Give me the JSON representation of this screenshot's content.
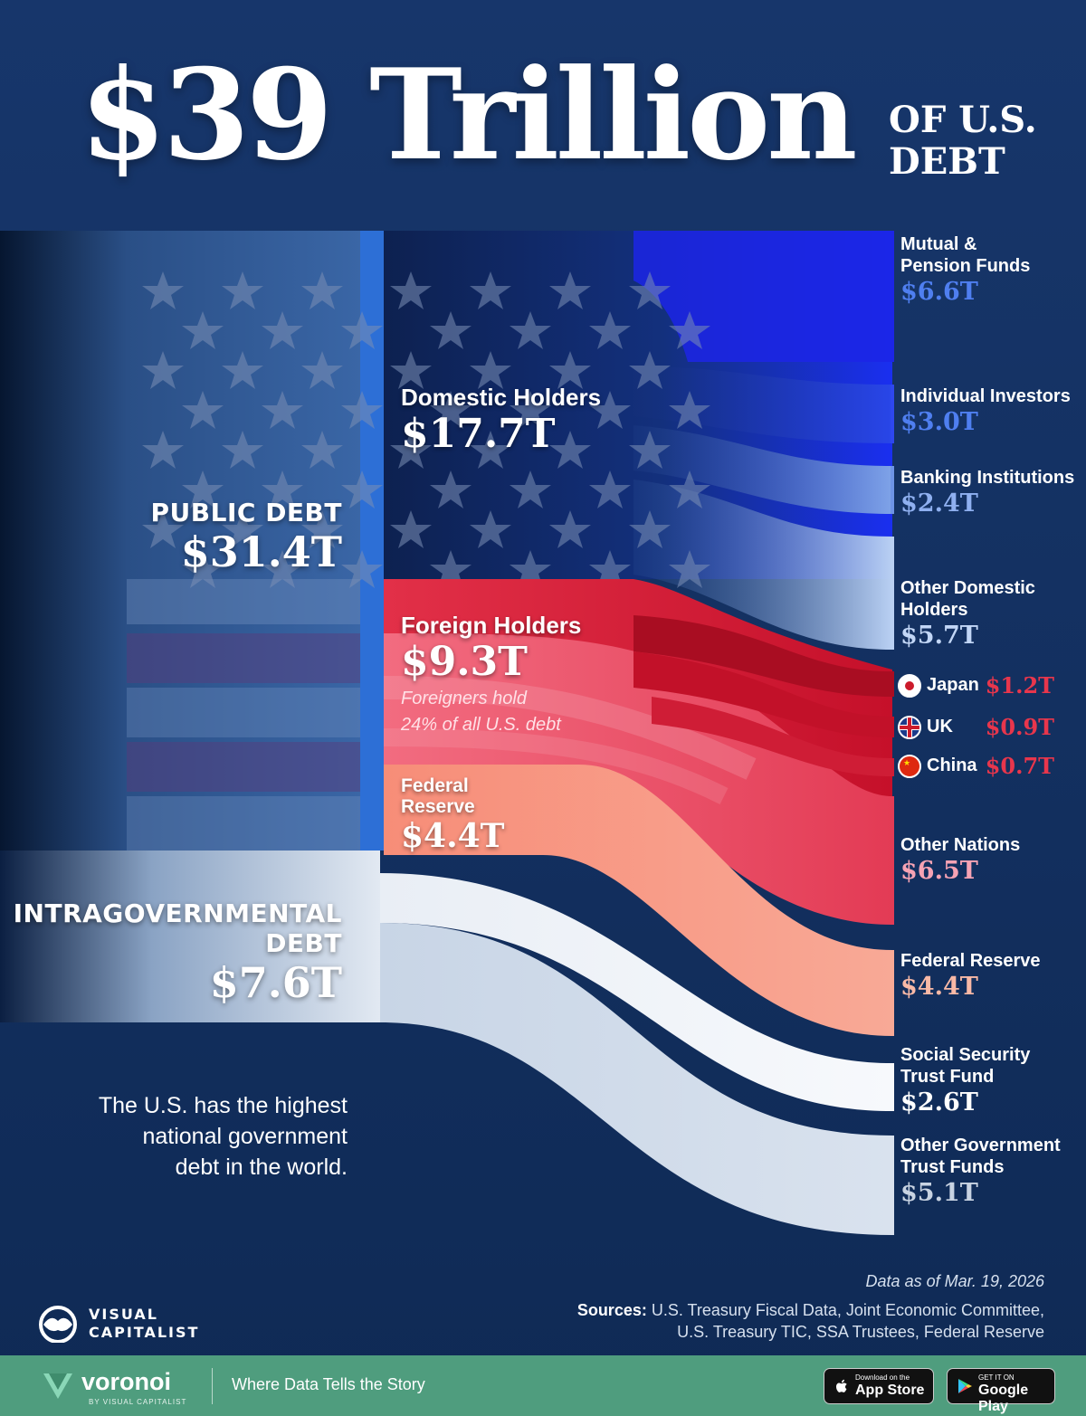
{
  "header": {
    "title_main": "$39 Trillion",
    "title_sub_line1": "OF U.S.",
    "title_sub_line2": "DEBT"
  },
  "colors": {
    "background": "#0f2a55",
    "domestic_blue": "#1f3ad6",
    "foreign_red": "#e8364c",
    "federal_reserve": "#f5907a",
    "intragov_white": "#e6edf5",
    "footer_green": "#4f9d7e"
  },
  "left_labels": {
    "public_debt_label": "PUBLIC DEBT",
    "public_debt_value": "$31.4T",
    "intragov_label_line1": "INTRAGOVERNMENTAL",
    "intragov_label_line2": "DEBT",
    "intragov_value": "$7.6T"
  },
  "middle_labels": {
    "domestic_name": "Domestic Holders",
    "domestic_value": "$17.7T",
    "foreign_name": "Foreign Holders",
    "foreign_value": "$9.3T",
    "foreign_note_line1": "Foreigners hold",
    "foreign_note_line2": "24% of all U.S. debt",
    "fed_name_line1": "Federal",
    "fed_name_line2": "Reserve",
    "fed_value": "$4.4T"
  },
  "right_labels": {
    "mutual_line1": "Mutual &",
    "mutual_line2": "Pension Funds",
    "mutual_value": "$6.6T",
    "individual": "Individual Investors",
    "individual_value": "$3.0T",
    "banking": "Banking Institutions",
    "banking_value": "$2.4T",
    "other_dom_line1": "Other Domestic",
    "other_dom_line2": "Holders",
    "other_dom_value": "$5.7T",
    "japan": "Japan",
    "japan_value": "$1.2T",
    "uk": "UK",
    "uk_value": "$0.9T",
    "china": "China",
    "china_value": "$0.7T",
    "other_nations": "Other Nations",
    "other_nations_value": "$6.5T",
    "fed": "Federal Reserve",
    "fed_value": "$4.4T",
    "ss_line1": "Social Security",
    "ss_line2": "Trust Fund",
    "ss_value": "$2.6T",
    "ogt_line1": "Other Government",
    "ogt_line2": "Trust Funds",
    "ogt_value": "$5.1T"
  },
  "tagline": {
    "line1": "The U.S. has the highest",
    "line2": "national government",
    "line3": "debt in the world."
  },
  "footnote": {
    "data_as_of": "Data as of Mar. 19, 2026",
    "sources_label": "Sources:",
    "sources_line1": "U.S. Treasury Fiscal Data, Joint Economic Committee,",
    "sources_line2": "U.S. Treasury TIC, SSA Trustees, Federal Reserve"
  },
  "branding": {
    "vc_line1": "VISUAL",
    "vc_line2": "CAPITALIST",
    "voronoi": "voronoi",
    "voronoi_by": "BY VISUAL CAPITALIST",
    "footer_tagline": "Where Data Tells the Story",
    "appstore_small": "Download on the",
    "appstore_big": "App Store",
    "googleplay_small": "GET IT ON",
    "googleplay_big": "Google Play"
  },
  "chart_data": {
    "type": "sankey",
    "title": "$39 Trillion OF U.S. DEBT",
    "unit": "$T",
    "total": 39,
    "nodes": [
      {
        "id": "public",
        "label": "PUBLIC DEBT",
        "value": 31.4,
        "level": 0
      },
      {
        "id": "intragov",
        "label": "INTRAGOVERNMENTAL DEBT",
        "value": 7.6,
        "level": 0
      },
      {
        "id": "domestic",
        "label": "Domestic Holders",
        "value": 17.7,
        "level": 1
      },
      {
        "id": "foreign",
        "label": "Foreign Holders",
        "value": 9.3,
        "level": 1
      },
      {
        "id": "fedmid",
        "label": "Federal Reserve",
        "value": 4.4,
        "level": 1
      },
      {
        "id": "mutual",
        "label": "Mutual & Pension Funds",
        "value": 6.6,
        "level": 2
      },
      {
        "id": "individual",
        "label": "Individual Investors",
        "value": 3.0,
        "level": 2
      },
      {
        "id": "banking",
        "label": "Banking Institutions",
        "value": 2.4,
        "level": 2
      },
      {
        "id": "otherdom",
        "label": "Other Domestic Holders",
        "value": 5.7,
        "level": 2
      },
      {
        "id": "japan",
        "label": "Japan",
        "value": 1.2,
        "level": 2
      },
      {
        "id": "uk",
        "label": "UK",
        "value": 0.9,
        "level": 2
      },
      {
        "id": "china",
        "label": "China",
        "value": 0.7,
        "level": 2
      },
      {
        "id": "othernations",
        "label": "Other Nations",
        "value": 6.5,
        "level": 2
      },
      {
        "id": "fed",
        "label": "Federal Reserve",
        "value": 4.4,
        "level": 2
      },
      {
        "id": "ss",
        "label": "Social Security Trust Fund",
        "value": 2.6,
        "level": 2
      },
      {
        "id": "ogt",
        "label": "Other Government Trust Funds",
        "value": 5.1,
        "level": 2
      }
    ],
    "links": [
      {
        "source": "public",
        "target": "domestic",
        "value": 17.7
      },
      {
        "source": "public",
        "target": "foreign",
        "value": 9.3
      },
      {
        "source": "public",
        "target": "fedmid",
        "value": 4.4
      },
      {
        "source": "domestic",
        "target": "mutual",
        "value": 6.6
      },
      {
        "source": "domestic",
        "target": "individual",
        "value": 3.0
      },
      {
        "source": "domestic",
        "target": "banking",
        "value": 2.4
      },
      {
        "source": "domestic",
        "target": "otherdom",
        "value": 5.7
      },
      {
        "source": "foreign",
        "target": "japan",
        "value": 1.2
      },
      {
        "source": "foreign",
        "target": "uk",
        "value": 0.9
      },
      {
        "source": "foreign",
        "target": "china",
        "value": 0.7
      },
      {
        "source": "foreign",
        "target": "othernations",
        "value": 6.5
      },
      {
        "source": "fedmid",
        "target": "fed",
        "value": 4.4
      },
      {
        "source": "intragov",
        "target": "ss",
        "value": 2.6
      },
      {
        "source": "intragov",
        "target": "ogt",
        "value": 5.1
      }
    ],
    "annotations": [
      "Foreigners hold 24% of all U.S. debt"
    ]
  }
}
